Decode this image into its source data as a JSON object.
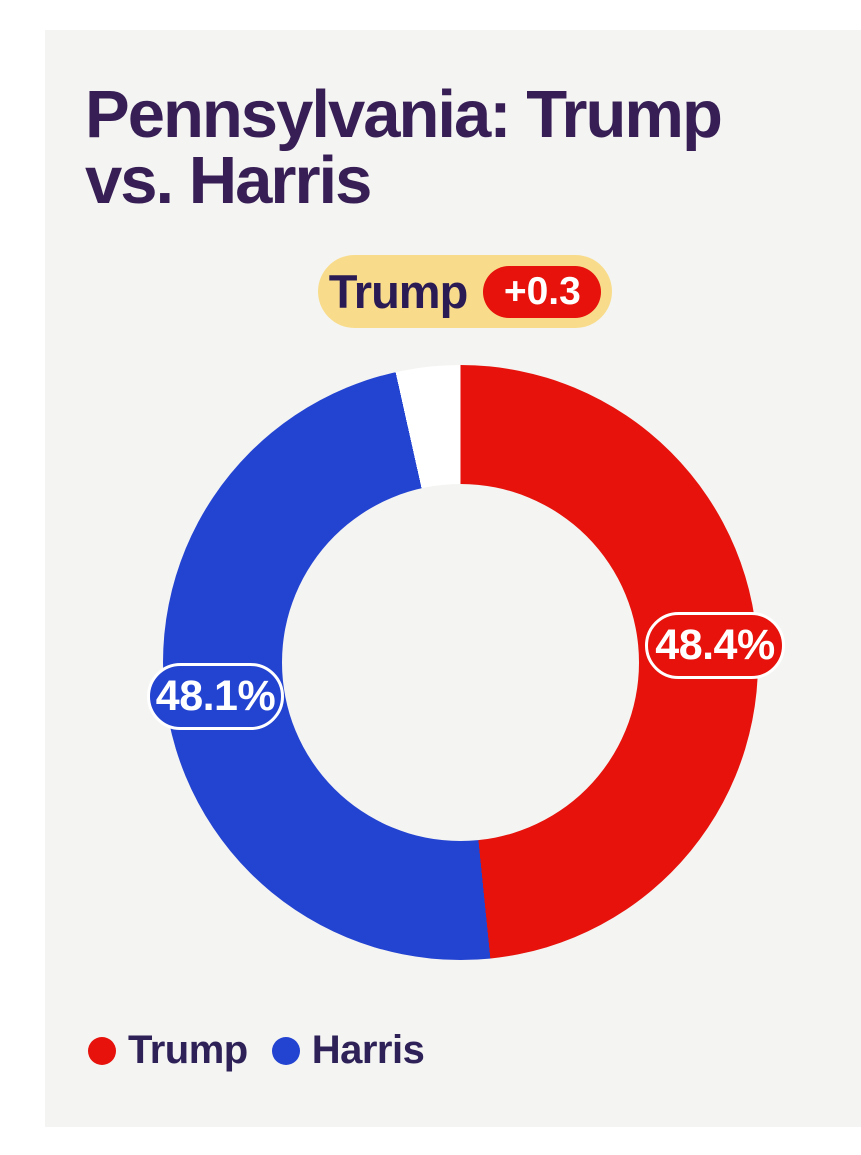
{
  "page": {
    "background": "#ffffff",
    "card_background": "#f4f4f2"
  },
  "title": {
    "line1": "Pennsylvania: Trump",
    "line2": "vs. Harris",
    "color": "#371f55"
  },
  "leader_badge": {
    "candidate": "Trump",
    "margin": "+0.3",
    "background": "#f8dc8c",
    "margin_background": "#e6120b",
    "text_color": "#2a1b55",
    "margin_text_color": "#ffffff"
  },
  "chart_data": {
    "type": "pie",
    "donut": true,
    "hole_ratio": 0.6,
    "title": "Pennsylvania: Trump vs. Harris",
    "categories": [
      "Trump",
      "Harris"
    ],
    "values": [
      48.4,
      48.1
    ],
    "remainder": 3.5,
    "remainder_color": "#ffffff",
    "colors": [
      "#e6120b",
      "#2343d1"
    ],
    "data_labels": [
      "48.4%",
      "48.1%"
    ],
    "leader": "Trump",
    "lead_margin": "+0.3",
    "start_angle_deg": 0,
    "direction": "clockwise",
    "legend_position": "bottom-left"
  },
  "slice_labels": {
    "trump": "48.4%",
    "harris": "48.1%"
  },
  "legend": {
    "items": [
      {
        "label": "Trump",
        "color": "#e6120b"
      },
      {
        "label": "Harris",
        "color": "#2343d1"
      }
    ],
    "text_color": "#2e2158"
  }
}
